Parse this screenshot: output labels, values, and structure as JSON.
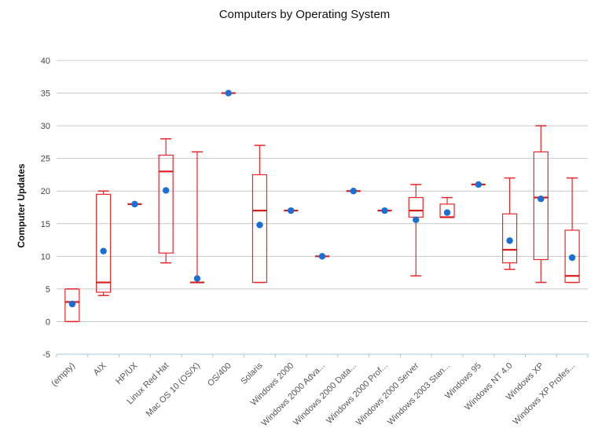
{
  "chart_data": {
    "type": "boxplot",
    "title": "Computers by Operating System",
    "xlabel": "",
    "ylabel": "Computer Updates",
    "ylim": [
      -5,
      40
    ],
    "yticks": [
      -5,
      0,
      5,
      10,
      15,
      20,
      25,
      30,
      35,
      40
    ],
    "grid": true,
    "legend": "none",
    "colors": {
      "box": "#e8262b",
      "median": "#d91e1e",
      "mean": "#1a6fd6",
      "grid": "#c8c8c8",
      "axis": "#aac4dc"
    },
    "categories": [
      "(empty)",
      "AIX",
      "HP/UX",
      "Linux Red Hat",
      "Mac OS 10 (OS/X)",
      "OS/400",
      "Solaris",
      "Windows 2000",
      "Windows 2000 Adva...",
      "Windows 2000 Data...",
      "Windows 2000 Prof...",
      "Windows 2000 Server",
      "Windows 2003 Stan...",
      "Windows 95",
      "Windows NT 4.0",
      "Windows XP",
      "Windows XP Profes..."
    ],
    "boxes": [
      {
        "min": 0,
        "q1": 0,
        "median": 3,
        "q3": 5,
        "max": 5,
        "mean": 2.7
      },
      {
        "min": 4,
        "q1": 4.5,
        "median": 6,
        "q3": 19.5,
        "max": 20,
        "mean": 10.8
      },
      {
        "min": 18,
        "q1": 18,
        "median": 18,
        "q3": 18,
        "max": 18,
        "mean": 18
      },
      {
        "min": 9,
        "q1": 10.5,
        "median": 23,
        "q3": 25.5,
        "max": 28,
        "mean": 20.1
      },
      {
        "min": 6,
        "q1": 6,
        "median": 6,
        "q3": 6,
        "max": 26,
        "mean": 6.6
      },
      {
        "min": 35,
        "q1": 35,
        "median": 35,
        "q3": 35,
        "max": 35,
        "mean": 35
      },
      {
        "min": 6,
        "q1": 6,
        "median": 17,
        "q3": 22.5,
        "max": 27,
        "mean": 14.8
      },
      {
        "min": 17,
        "q1": 17,
        "median": 17,
        "q3": 17,
        "max": 17,
        "mean": 17
      },
      {
        "min": 10,
        "q1": 10,
        "median": 10,
        "q3": 10,
        "max": 10,
        "mean": 10
      },
      {
        "min": 20,
        "q1": 20,
        "median": 20,
        "q3": 20,
        "max": 20,
        "mean": 20
      },
      {
        "min": 17,
        "q1": 17,
        "median": 17,
        "q3": 17,
        "max": 17,
        "mean": 17
      },
      {
        "min": 7,
        "q1": 16,
        "median": 17,
        "q3": 19,
        "max": 21,
        "mean": 15.6
      },
      {
        "min": 16,
        "q1": 16,
        "median": 16,
        "q3": 18,
        "max": 19,
        "mean": 16.7
      },
      {
        "min": 21,
        "q1": 21,
        "median": 21,
        "q3": 21,
        "max": 21,
        "mean": 21
      },
      {
        "min": 8,
        "q1": 9,
        "median": 11,
        "q3": 16.5,
        "max": 22,
        "mean": 12.4
      },
      {
        "min": 6,
        "q1": 9.5,
        "median": 19,
        "q3": 26,
        "max": 30,
        "mean": 18.8
      },
      {
        "min": 6,
        "q1": 6,
        "median": 7,
        "q3": 14,
        "max": 22,
        "mean": 9.8
      }
    ]
  }
}
